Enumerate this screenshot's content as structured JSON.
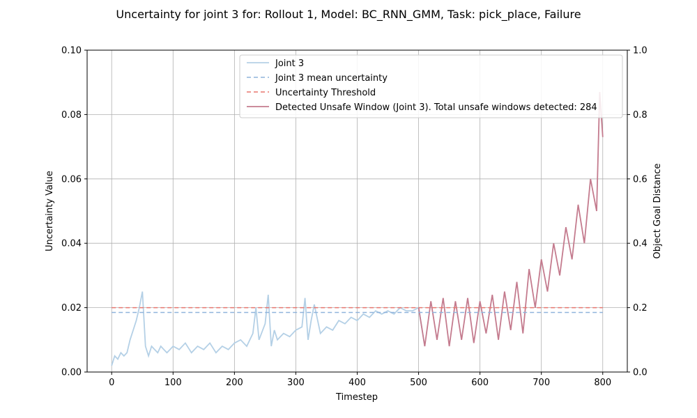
{
  "chart_data": {
    "type": "line",
    "title": "Uncertainty for joint 3 for: Rollout 1, Model: BC_RNN_GMM, Task: pick_place, Failure",
    "xlabel": "Timestep",
    "ylabel": "Uncertainty Value",
    "y2label": "Object Goal Distance",
    "xlim": [
      -40,
      840
    ],
    "ylim": [
      0,
      0.1
    ],
    "y2lim": [
      0,
      1.0
    ],
    "xticks": [
      0,
      100,
      200,
      300,
      400,
      500,
      600,
      700,
      800
    ],
    "yticks": [
      0.0,
      0.02,
      0.04,
      0.06,
      0.08,
      0.1
    ],
    "y2ticks": [
      0.0,
      0.2,
      0.4,
      0.6,
      0.8,
      1.0
    ],
    "grid": true,
    "legend_position": "top-right",
    "colors": {
      "joint": "#b4d0e6",
      "mean": "#8fb3dc",
      "threshold": "#e8766f",
      "unsafe": "#c47b8e"
    },
    "mean_uncertainty": 0.0185,
    "threshold": 0.02,
    "unsafe_start": 510,
    "series": [
      {
        "name": "Joint 3",
        "x": [
          0,
          5,
          10,
          15,
          20,
          25,
          30,
          35,
          40,
          45,
          50,
          55,
          60,
          65,
          70,
          75,
          80,
          85,
          90,
          95,
          100,
          110,
          120,
          130,
          140,
          150,
          160,
          170,
          180,
          190,
          200,
          210,
          220,
          230,
          235,
          240,
          250,
          255,
          260,
          265,
          270,
          280,
          290,
          300,
          310,
          315,
          320,
          325,
          330,
          340,
          350,
          360,
          370,
          380,
          390,
          400,
          410,
          420,
          430,
          440,
          450,
          460,
          470,
          480,
          490,
          500,
          510,
          520,
          530,
          540,
          550,
          560,
          570,
          580,
          590,
          600,
          610,
          620,
          630,
          640,
          650,
          660,
          670,
          680,
          690,
          700,
          710,
          720,
          730,
          740,
          750,
          760,
          770,
          780,
          790,
          795,
          800
        ],
        "y": [
          0.002,
          0.005,
          0.004,
          0.006,
          0.005,
          0.006,
          0.01,
          0.013,
          0.016,
          0.02,
          0.025,
          0.008,
          0.005,
          0.008,
          0.007,
          0.006,
          0.008,
          0.007,
          0.006,
          0.007,
          0.008,
          0.007,
          0.009,
          0.006,
          0.008,
          0.007,
          0.009,
          0.006,
          0.008,
          0.007,
          0.009,
          0.01,
          0.008,
          0.012,
          0.02,
          0.01,
          0.015,
          0.024,
          0.008,
          0.013,
          0.01,
          0.012,
          0.011,
          0.013,
          0.014,
          0.023,
          0.01,
          0.016,
          0.021,
          0.012,
          0.014,
          0.013,
          0.016,
          0.015,
          0.017,
          0.016,
          0.018,
          0.017,
          0.019,
          0.018,
          0.019,
          0.018,
          0.02,
          0.019,
          0.019,
          0.02,
          0.008,
          0.022,
          0.01,
          0.023,
          0.008,
          0.022,
          0.01,
          0.023,
          0.009,
          0.022,
          0.012,
          0.024,
          0.01,
          0.025,
          0.013,
          0.028,
          0.012,
          0.032,
          0.02,
          0.035,
          0.025,
          0.04,
          0.03,
          0.045,
          0.035,
          0.052,
          0.04,
          0.06,
          0.05,
          0.087,
          0.073
        ]
      },
      {
        "name": "Joint 3 mean uncertainty",
        "value": 0.0185
      },
      {
        "name": "Uncertainty Threshold",
        "value": 0.02
      },
      {
        "name": "Detected Unsafe Window (Joint 3). Total unsafe windows detected: 284"
      }
    ]
  }
}
